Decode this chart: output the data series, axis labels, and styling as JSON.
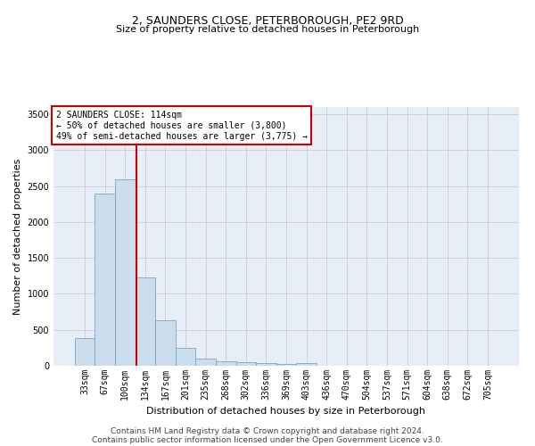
{
  "title": "2, SAUNDERS CLOSE, PETERBOROUGH, PE2 9RD",
  "subtitle": "Size of property relative to detached houses in Peterborough",
  "xlabel": "Distribution of detached houses by size in Peterborough",
  "ylabel": "Number of detached properties",
  "footnote1": "Contains HM Land Registry data © Crown copyright and database right 2024.",
  "footnote2": "Contains public sector information licensed under the Open Government Licence v3.0.",
  "annotation_title": "2 SAUNDERS CLOSE: 114sqm",
  "annotation_line1": "← 50% of detached houses are smaller (3,800)",
  "annotation_line2": "49% of semi-detached houses are larger (3,775) →",
  "bar_labels": [
    "33sqm",
    "67sqm",
    "100sqm",
    "134sqm",
    "167sqm",
    "201sqm",
    "235sqm",
    "268sqm",
    "302sqm",
    "336sqm",
    "369sqm",
    "403sqm",
    "436sqm",
    "470sqm",
    "504sqm",
    "537sqm",
    "571sqm",
    "604sqm",
    "638sqm",
    "672sqm",
    "705sqm"
  ],
  "bar_values": [
    390,
    2400,
    2600,
    1230,
    630,
    245,
    100,
    60,
    55,
    35,
    30,
    40,
    0,
    0,
    0,
    0,
    0,
    0,
    0,
    0,
    0
  ],
  "bar_color": "#ccdded",
  "bar_edge_color": "#7aaabb",
  "bg_color": "#e8eef8",
  "grid_color": "#c8ccd8",
  "redline_x": 2.57,
  "annotation_box_color": "#ffffff",
  "annotation_box_edge": "#cc0000",
  "ylim": [
    0,
    3600
  ],
  "yticks": [
    0,
    500,
    1000,
    1500,
    2000,
    2500,
    3000,
    3500
  ],
  "title_fontsize": 9,
  "subtitle_fontsize": 8,
  "ylabel_fontsize": 8,
  "xlabel_fontsize": 8,
  "tick_fontsize": 7,
  "footnote_fontsize": 6.5
}
